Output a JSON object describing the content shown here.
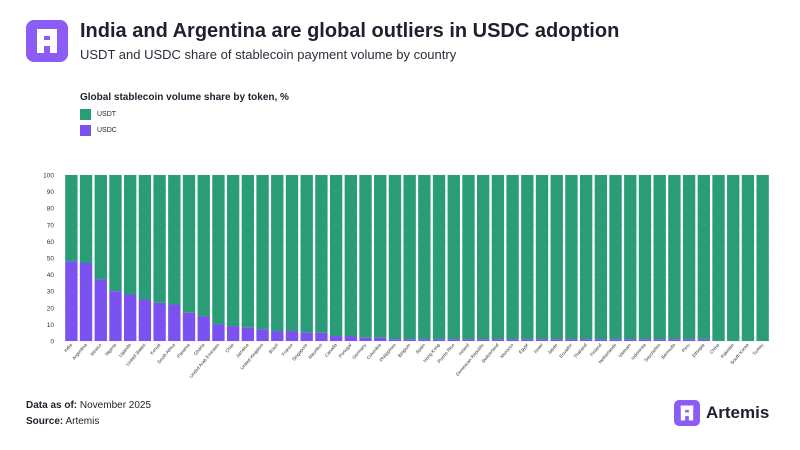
{
  "header": {
    "title": "India and Argentina are global outliers in USDC adoption",
    "subtitle": "USDT and USDC share of stablecoin payment volume by country"
  },
  "chart_data": {
    "type": "bar",
    "stacked": true,
    "title": "Global stablecoin volume share by token, %",
    "xlabel": "",
    "ylabel": "",
    "ylim": [
      0,
      100
    ],
    "yticks": [
      0,
      10,
      20,
      30,
      40,
      50,
      60,
      70,
      80,
      90,
      100
    ],
    "grid": true,
    "legend_position": "top-left",
    "categories": [
      "India",
      "Argentina",
      "Mexico",
      "Nigeria",
      "Uganda",
      "United States",
      "Kenya",
      "South Africa",
      "Panama",
      "Ghana",
      "United Arab Emirates",
      "Chile",
      "Jamaica",
      "United Kingdom",
      "Brazil",
      "France",
      "Singapore",
      "Mauritius",
      "Canada",
      "Portugal",
      "Germany",
      "Colombia",
      "Philippines",
      "Belgium",
      "Spain",
      "Hong Kong",
      "Puerto Rico",
      "Ireland",
      "Dominican Republic",
      "Switzerland",
      "Morocco",
      "Egypt",
      "Israel",
      "Japan",
      "Ecuador",
      "Thailand",
      "Finland",
      "Netherlands",
      "Vietnam",
      "Indonesia",
      "Seychelles",
      "Bermuda",
      "Peru",
      "Ethiopia",
      "China",
      "Pakistan",
      "South Korea",
      "Turkey"
    ],
    "series": [
      {
        "name": "USDC",
        "color": "#7b52f0",
        "values": [
          48,
          47,
          37,
          30,
          28,
          25,
          23,
          22,
          17,
          15,
          10,
          9,
          8,
          7,
          6,
          6,
          5,
          5,
          3,
          3,
          2,
          2,
          1,
          1,
          1,
          1,
          1,
          1,
          1,
          1,
          1,
          1,
          1,
          1,
          1,
          1,
          1,
          1,
          1,
          1,
          1,
          1,
          1,
          1,
          0,
          0,
          0,
          0
        ]
      },
      {
        "name": "USDT",
        "color": "#2a9d78",
        "values": [
          52,
          53,
          63,
          70,
          72,
          75,
          77,
          78,
          83,
          85,
          90,
          91,
          92,
          93,
          94,
          94,
          95,
          95,
          97,
          97,
          98,
          98,
          99,
          99,
          99,
          99,
          99,
          99,
          99,
          99,
          99,
          99,
          99,
          99,
          99,
          99,
          99,
          99,
          99,
          99,
          99,
          99,
          99,
          99,
          100,
          100,
          100,
          100
        ]
      }
    ]
  },
  "footer": {
    "data_as_of_label": "Data as of:",
    "data_as_of_value": " November 2025",
    "source_label": "Source:",
    "source_value": " Artemis"
  },
  "brand": {
    "name": "Artemis",
    "color": "#8b5cf6"
  },
  "icons": {
    "header_logo": "artemis-logo-icon",
    "brand_logo": "artemis-logo-icon"
  }
}
